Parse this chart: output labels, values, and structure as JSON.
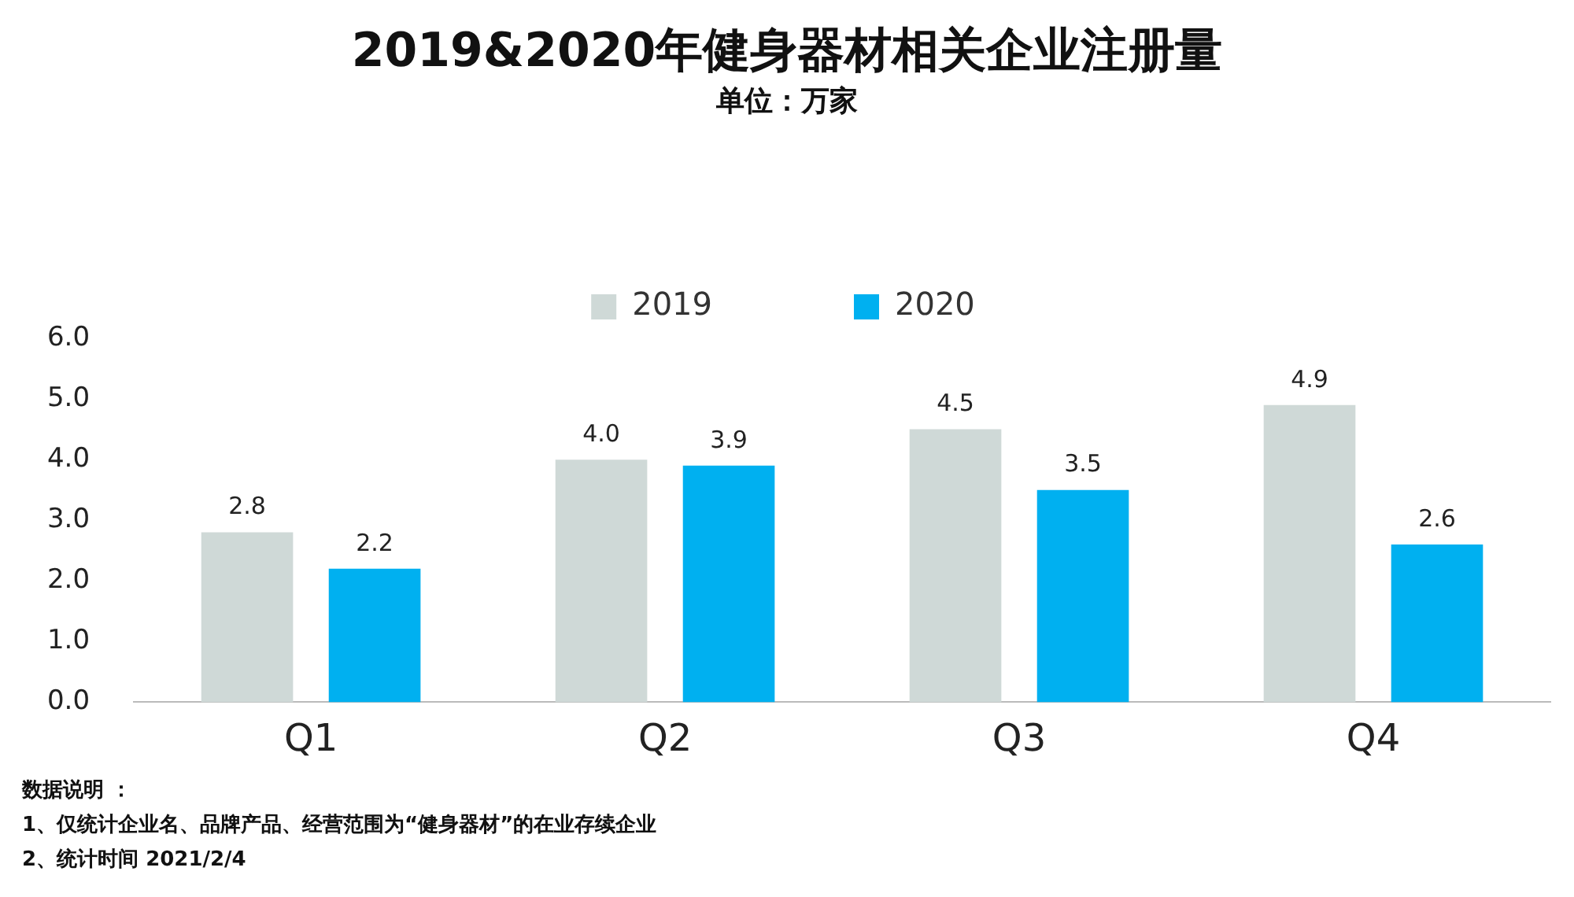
{
  "chart_data": {
    "type": "bar",
    "title": "2019&2020年健身器材相关企业注册量",
    "subtitle": "单位：万家",
    "categories": [
      "Q1",
      "Q2",
      "Q3",
      "Q4"
    ],
    "series": [
      {
        "name": "2019",
        "color": "#cfd9d7",
        "values": [
          2.8,
          4.0,
          4.5,
          4.9
        ],
        "value_labels": [
          "2.8",
          "4.0",
          "4.5",
          "4.9"
        ]
      },
      {
        "name": "2020",
        "color": "#00b0f0",
        "values": [
          2.2,
          3.9,
          3.5,
          2.6
        ],
        "value_labels": [
          "2.2",
          "3.9",
          "3.5",
          "2.6"
        ]
      }
    ],
    "ylim": [
      0,
      6
    ],
    "yticks": [
      {
        "value": 0,
        "label": "0.0"
      },
      {
        "value": 1,
        "label": "1.0"
      },
      {
        "value": 2,
        "label": "2.0"
      },
      {
        "value": 3,
        "label": "3.0"
      },
      {
        "value": 4,
        "label": "4.0"
      },
      {
        "value": 5,
        "label": "5.0"
      },
      {
        "value": 6,
        "label": "6.0"
      }
    ],
    "grid": false,
    "legend": "top",
    "annotations": [
      "数据说明 ：",
      "1、仅统计企业名、品牌产品、经营范围为“健身器材”的在业存续企业",
      "2、统计时间 2021/2/4"
    ]
  }
}
